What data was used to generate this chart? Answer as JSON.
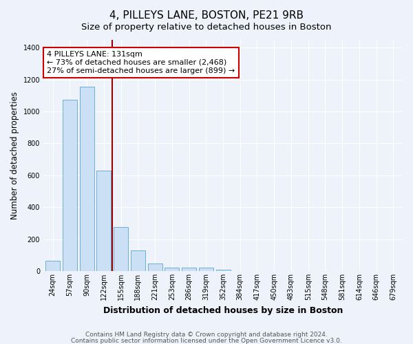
{
  "title": "4, PILLEYS LANE, BOSTON, PE21 9RB",
  "subtitle": "Size of property relative to detached houses in Boston",
  "xlabel": "Distribution of detached houses by size in Boston",
  "ylabel": "Number of detached properties",
  "categories": [
    "24sqm",
    "57sqm",
    "90sqm",
    "122sqm",
    "155sqm",
    "188sqm",
    "221sqm",
    "253sqm",
    "286sqm",
    "319sqm",
    "352sqm",
    "384sqm",
    "417sqm",
    "450sqm",
    "483sqm",
    "515sqm",
    "548sqm",
    "581sqm",
    "614sqm",
    "646sqm",
    "679sqm"
  ],
  "values": [
    65,
    1075,
    1155,
    630,
    275,
    130,
    47,
    22,
    20,
    22,
    10,
    0,
    0,
    0,
    0,
    0,
    0,
    0,
    0,
    0,
    0
  ],
  "bar_color": "#cce0f5",
  "bar_edge_color": "#6aaed6",
  "vline_x": 3.5,
  "vline_color": "#990000",
  "ylim": [
    0,
    1450
  ],
  "yticks": [
    0,
    200,
    400,
    600,
    800,
    1000,
    1200,
    1400
  ],
  "annotation_text": "4 PILLEYS LANE: 131sqm\n← 73% of detached houses are smaller (2,468)\n27% of semi-detached houses are larger (899) →",
  "annotation_box_facecolor": "#ffffff",
  "annotation_box_edgecolor": "#cc0000",
  "footnote1": "Contains HM Land Registry data © Crown copyright and database right 2024.",
  "footnote2": "Contains public sector information licensed under the Open Government Licence v3.0.",
  "title_fontsize": 11,
  "subtitle_fontsize": 9.5,
  "xlabel_fontsize": 9,
  "ylabel_fontsize": 8.5,
  "tick_fontsize": 7,
  "annotation_fontsize": 8,
  "footnote_fontsize": 6.5,
  "background_color": "#eef2fa"
}
